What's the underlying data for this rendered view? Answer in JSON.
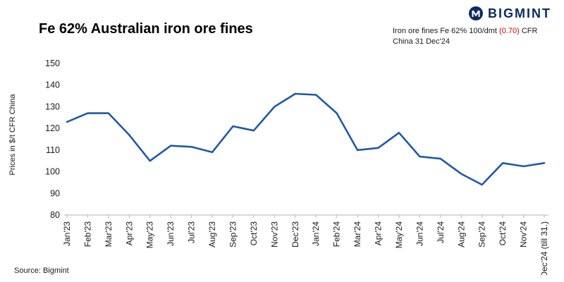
{
  "brand": {
    "name": "BIGMINT"
  },
  "title": "Fe 62% Australian iron ore fines",
  "annotation": {
    "prefix": "Iron ore fines Fe 62% 100/dmt ",
    "highlight": "(0.70)",
    "suffix": " CFR China 31 Dec'24"
  },
  "source": "Source: Bigmint",
  "colors": {
    "line": "#1f5aa7",
    "highlight": "#e00000",
    "brand": "#0d2b63",
    "axis": "#b5b5b5",
    "tick_text": "#1a1a1a"
  },
  "chart_data": {
    "type": "line",
    "title": "Fe 62% Australian iron ore fines",
    "xlabel": "",
    "ylabel": "Prices in $/t CFR China",
    "ylim": [
      80,
      150
    ],
    "ytick_step": 10,
    "grid": false,
    "legend": "none",
    "categories": [
      "Jan'23",
      "Feb'23",
      "Mar'23",
      "Apr'23",
      "May'23",
      "Jun'23",
      "Jul'23",
      "Aug'23",
      "Sep'23",
      "Oct'23",
      "Nov'23",
      "Dec'23",
      "Jan'24",
      "Feb'24",
      "Mar'24",
      "Apr'24",
      "May'24",
      "Jun'24",
      "Jul'24",
      "Aug'24",
      "Sep'24",
      "Oct'24",
      "Nov'24",
      "Dec'24 (till 31.)"
    ],
    "series": [
      {
        "name": "Fe 62% Australian iron ore fines CFR China",
        "values": [
          123,
          127,
          127,
          117,
          105,
          112,
          111.5,
          109,
          121,
          119,
          130,
          136,
          135.5,
          127,
          110,
          111,
          118,
          107,
          106,
          99,
          94,
          104,
          102.5,
          104
        ]
      }
    ]
  }
}
